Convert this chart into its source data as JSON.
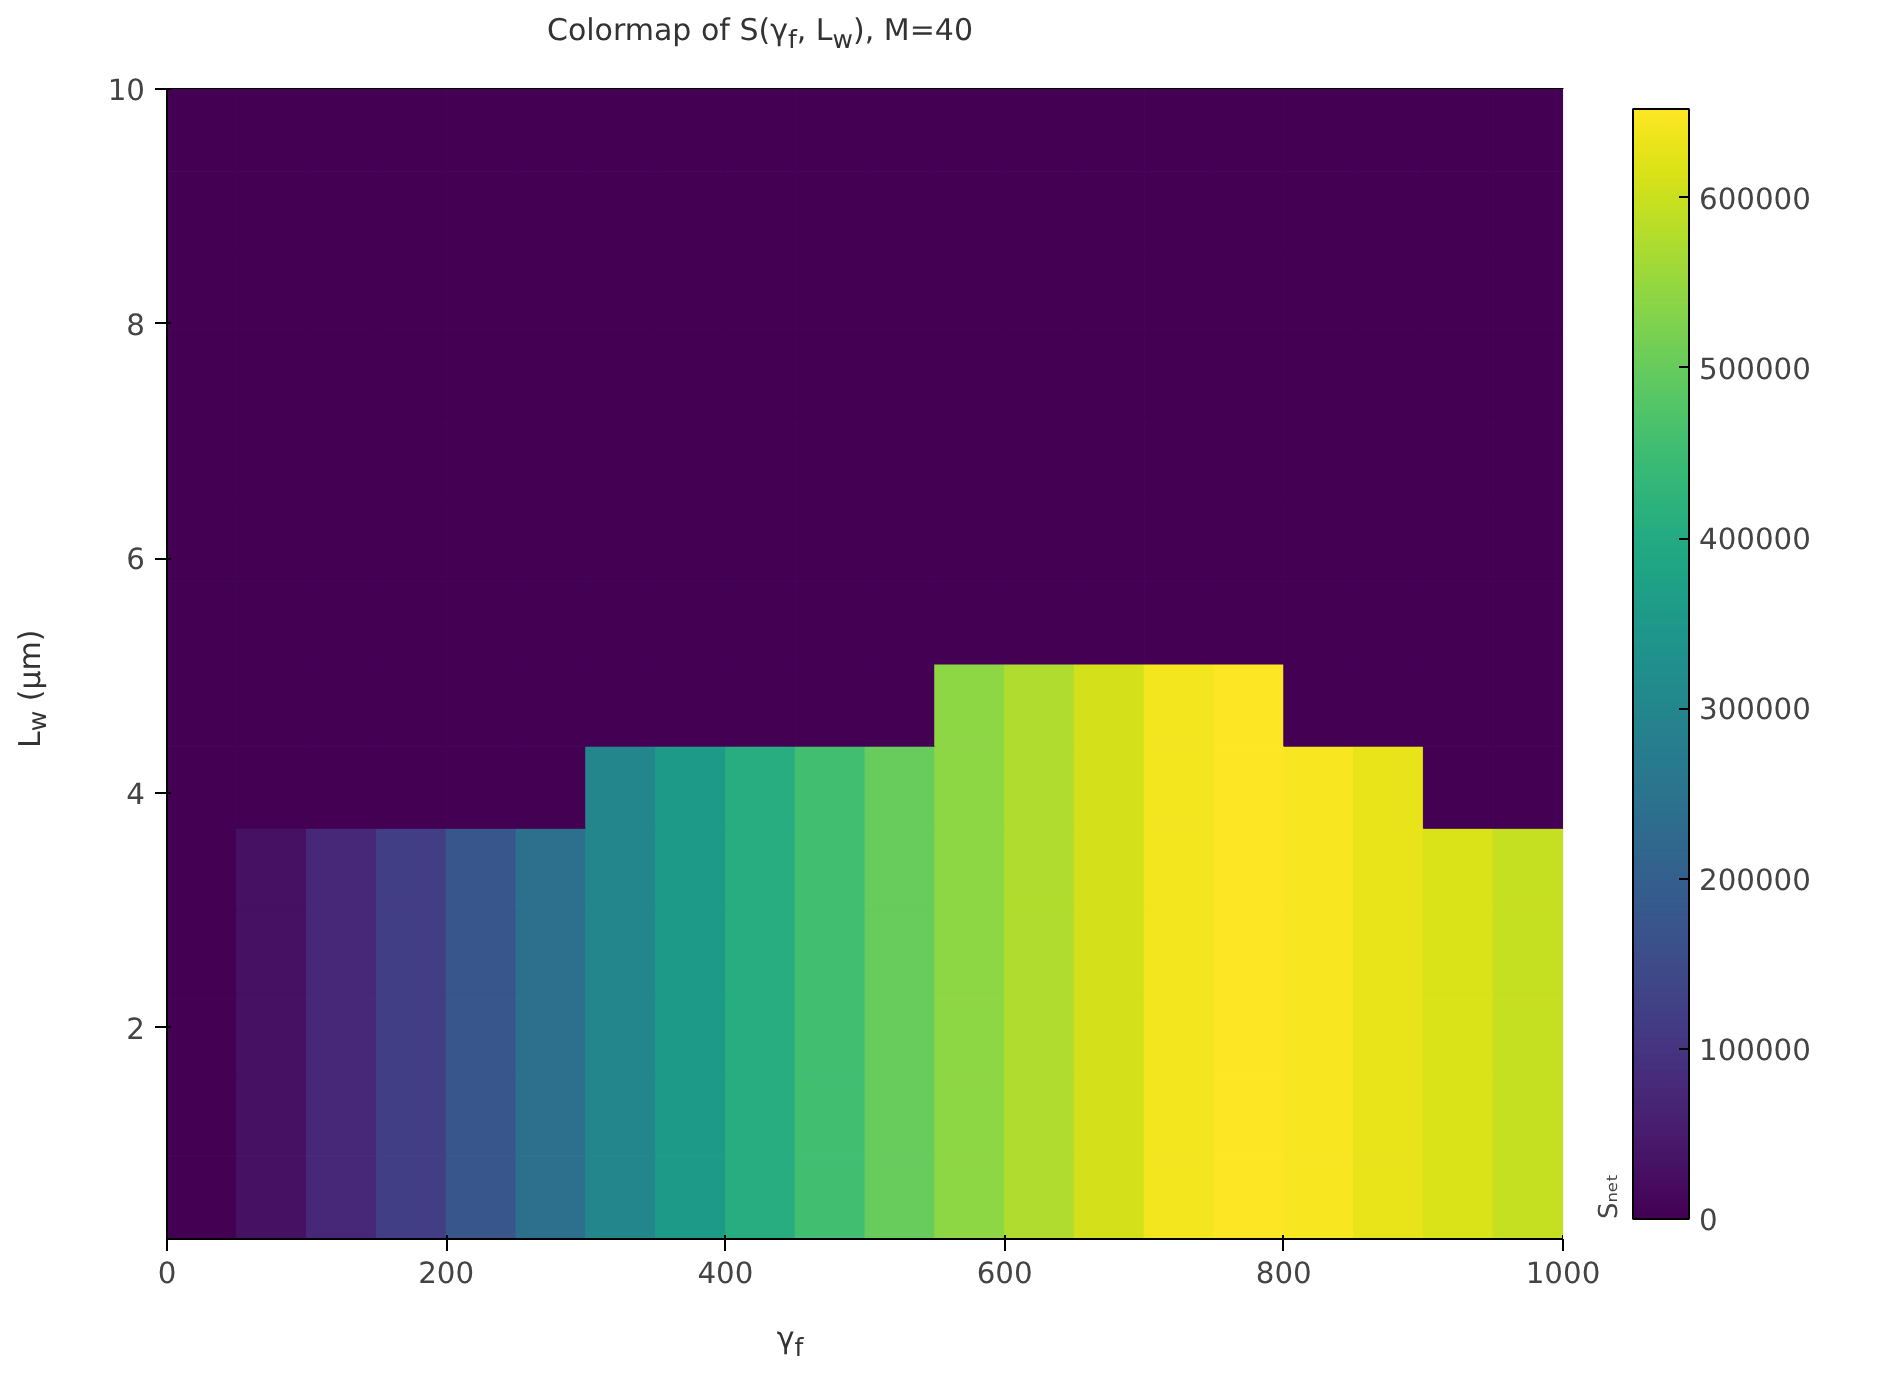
{
  "chart_data": {
    "type": "scatter",
    "marker": "square",
    "title": "Colormap of S(γ$_{f}$, L$_{w}$), M=40",
    "xlabel": "γ$_{f}$",
    "ylabel": "L$_{w}$ (μm)",
    "clabel": "Sₙₑₜ",
    "xlim": [
      0,
      1000
    ],
    "xticks": [
      0,
      200,
      400,
      600,
      800,
      1000
    ],
    "ylim": [
      0.2,
      10
    ],
    "yticks": [
      2,
      4,
      6,
      8,
      10
    ],
    "clim": [
      0,
      652000
    ],
    "cticks": [
      0,
      100000,
      200000,
      300000,
      400000,
      500000,
      600000
    ],
    "x": [
      25,
      75,
      125,
      175,
      225,
      275,
      325,
      375,
      425,
      475,
      525,
      575,
      625,
      675,
      725,
      775,
      825,
      875,
      925,
      975,
      25,
      75,
      125,
      175,
      225,
      275,
      325,
      375,
      425,
      475,
      525,
      575,
      625,
      675,
      725,
      775,
      825,
      875,
      925,
      975,
      25,
      75,
      125,
      175,
      225,
      275,
      325,
      375,
      425,
      475,
      525,
      575,
      625,
      675,
      725,
      775,
      825,
      875,
      925,
      975,
      25,
      75,
      125,
      175,
      225,
      275,
      325,
      375,
      425,
      475,
      525,
      575,
      625,
      675,
      725,
      775,
      825,
      875,
      925,
      975,
      25,
      75,
      125,
      175,
      225,
      275,
      325,
      375,
      425,
      475,
      525,
      575,
      625,
      675,
      725,
      775,
      825,
      875,
      925,
      975,
      25,
      75,
      125,
      175,
      225,
      275,
      325,
      375,
      425,
      475,
      525,
      575,
      625,
      675,
      725,
      775,
      825,
      875,
      925,
      975,
      25,
      75,
      125,
      175,
      225,
      275,
      325,
      375,
      425,
      475,
      525,
      575,
      625,
      675,
      725,
      775,
      825,
      875,
      925,
      975,
      25,
      75,
      125,
      175,
      225,
      275,
      325,
      375,
      425,
      475,
      525,
      575,
      625,
      675,
      725,
      775,
      825,
      875,
      925,
      975,
      25,
      75,
      125,
      175,
      225,
      275,
      325,
      375,
      425,
      475,
      525,
      575,
      625,
      675,
      725,
      775,
      825,
      875,
      925,
      975,
      25,
      75,
      125,
      175,
      225,
      275,
      325,
      375,
      425,
      475,
      525,
      575,
      625,
      675,
      725,
      775,
      825,
      875,
      925,
      975,
      25,
      75,
      125,
      175,
      225,
      275,
      325,
      375,
      425,
      475,
      525,
      575,
      625,
      675,
      725,
      775,
      825,
      875,
      925,
      975,
      25,
      75,
      125,
      175,
      225,
      275,
      325,
      375,
      425,
      475,
      525,
      575,
      625,
      675,
      725,
      775,
      825,
      875,
      925,
      975,
      25,
      75,
      125,
      175,
      225,
      275,
      325,
      375,
      425,
      475,
      525,
      575,
      625,
      675,
      725,
      775,
      825,
      875,
      925,
      975,
      25,
      75,
      125,
      175,
      225,
      275,
      325,
      375,
      425,
      475,
      525,
      575,
      625,
      675,
      725,
      775,
      825,
      875,
      925,
      975
    ],
    "values": [
      0.55,
      0.55,
      0.55,
      0.55,
      0.55,
      0.55,
      0.55,
      0.55,
      0.55,
      0.55,
      0.55,
      0.55,
      0.55,
      0.55,
      0.55,
      0.55,
      0.55,
      0.55,
      0.55,
      0.55,
      1.25,
      1.25,
      1.25,
      1.25,
      1.25,
      1.25,
      1.25,
      1.25,
      1.25,
      1.25,
      1.25,
      1.25,
      1.25,
      1.25,
      1.25,
      1.25,
      1.25,
      1.25,
      1.25,
      1.25,
      1.95,
      1.95,
      1.95,
      1.95,
      1.95,
      1.95,
      1.95,
      1.95,
      1.95,
      1.95,
      1.95,
      1.95,
      1.95,
      1.95,
      1.95,
      1.95,
      1.95,
      1.95,
      1.95,
      1.95,
      2.65,
      2.65,
      2.65,
      2.65,
      2.65,
      2.65,
      2.65,
      2.65,
      2.65,
      2.65,
      2.65,
      2.65,
      2.65,
      2.65,
      2.65,
      2.65,
      2.65,
      2.65,
      2.65,
      2.65,
      3.35,
      3.35,
      3.35,
      3.35,
      3.35,
      3.35,
      3.35,
      3.35,
      3.35,
      3.35,
      3.35,
      3.35,
      3.35,
      3.35,
      3.35,
      3.35,
      3.35,
      3.35,
      3.35,
      3.35,
      4.05,
      4.05,
      4.05,
      4.05,
      4.05,
      4.05,
      4.05,
      4.05,
      4.05,
      4.05,
      4.05,
      4.05,
      4.05,
      4.05,
      4.05,
      4.05,
      4.05,
      4.05,
      4.05,
      4.05,
      4.75,
      4.75,
      4.75,
      4.75,
      4.75,
      4.75,
      4.75,
      4.75,
      4.75,
      4.75,
      4.75,
      4.75,
      4.75,
      4.75,
      4.75,
      4.75,
      4.75,
      4.75,
      4.75,
      4.75,
      5.45,
      5.45,
      5.45,
      5.45,
      5.45,
      5.45,
      5.45,
      5.45,
      5.45,
      5.45,
      5.45,
      5.45,
      5.45,
      5.45,
      5.45,
      5.45,
      5.45,
      5.45,
      5.45,
      5.45,
      6.15,
      6.15,
      6.15,
      6.15,
      6.15,
      6.15,
      6.15,
      6.15,
      6.15,
      6.15,
      6.15,
      6.15,
      6.15,
      6.15,
      6.15,
      6.15,
      6.15,
      6.15,
      6.15,
      6.15,
      6.85,
      6.85,
      6.85,
      6.85,
      6.85,
      6.85,
      6.85,
      6.85,
      6.85,
      6.85,
      6.85,
      6.85,
      6.85,
      6.85,
      6.85,
      6.85,
      6.85,
      6.85,
      6.85,
      6.85,
      7.55,
      7.55,
      7.55,
      7.55,
      7.55,
      7.55,
      7.55,
      7.55,
      7.55,
      7.55,
      7.55,
      7.55,
      7.55,
      7.55,
      7.55,
      7.55,
      7.55,
      7.55,
      7.55,
      7.55,
      8.25,
      8.25,
      8.25,
      8.25,
      8.25,
      8.25,
      8.25,
      8.25,
      8.25,
      8.25,
      8.25,
      8.25,
      8.25,
      8.25,
      8.25,
      8.25,
      8.25,
      8.25,
      8.25,
      8.25,
      8.95,
      8.95,
      8.95,
      8.95,
      8.95,
      8.95,
      8.95,
      8.95,
      8.95,
      8.95,
      8.95,
      8.95,
      8.95,
      8.95,
      8.95,
      8.95,
      8.95,
      8.95,
      8.95,
      8.95,
      9.65,
      9.65,
      9.65,
      9.65,
      9.65,
      9.65,
      9.65,
      9.65,
      9.65,
      9.65,
      9.65,
      9.65,
      9.65,
      9.65,
      9.65,
      9.65,
      9.65,
      9.65,
      9.65,
      9.65
    ],
    "cvalues": [
      0,
      30000,
      75000,
      120000,
      175000,
      240000,
      300000,
      355000,
      405000,
      455000,
      500000,
      540000,
      575000,
      610000,
      640000,
      650000,
      645000,
      630000,
      615000,
      595000,
      0,
      30000,
      75000,
      120000,
      175000,
      240000,
      300000,
      355000,
      405000,
      455000,
      500000,
      540000,
      575000,
      610000,
      640000,
      650000,
      645000,
      630000,
      615000,
      595000,
      0,
      30000,
      75000,
      120000,
      175000,
      240000,
      300000,
      355000,
      405000,
      455000,
      500000,
      540000,
      575000,
      610000,
      640000,
      650000,
      645000,
      630000,
      615000,
      595000,
      0,
      30000,
      75000,
      120000,
      175000,
      240000,
      300000,
      355000,
      405000,
      455000,
      500000,
      540000,
      575000,
      610000,
      640000,
      650000,
      645000,
      630000,
      615000,
      595000,
      0,
      30000,
      75000,
      120000,
      175000,
      240000,
      300000,
      355000,
      405000,
      455000,
      500000,
      540000,
      575000,
      610000,
      640000,
      650000,
      645000,
      630000,
      615000,
      595000,
      0,
      0,
      0,
      0,
      0,
      0,
      300000,
      355000,
      405000,
      455000,
      500000,
      540000,
      575000,
      610000,
      640000,
      650000,
      645000,
      630000,
      0,
      0,
      0,
      0,
      0,
      0,
      0,
      0,
      0,
      0,
      0,
      0,
      0,
      540000,
      575000,
      610000,
      640000,
      650000,
      0,
      0,
      0,
      0,
      0,
      0,
      0,
      0,
      0,
      0,
      0,
      0,
      0,
      0,
      0,
      0,
      0,
      0,
      0,
      0,
      0,
      0,
      0,
      0,
      0,
      0,
      0,
      0,
      0,
      0,
      0,
      0,
      0,
      0,
      0,
      0,
      0,
      0,
      0,
      0,
      0,
      0,
      0,
      0,
      0,
      0,
      0,
      0,
      0,
      0,
      0,
      0,
      0,
      0,
      0,
      0,
      0,
      0,
      0,
      0,
      0,
      0,
      0,
      0,
      0,
      0,
      0,
      0,
      0,
      0,
      0,
      0,
      0,
      0,
      0,
      0,
      0,
      0,
      0,
      0,
      0,
      0,
      0,
      0,
      0,
      0,
      0,
      0,
      0,
      0,
      0,
      0,
      0,
      0,
      0,
      0,
      0,
      0,
      0,
      0,
      0,
      0,
      0,
      0,
      0,
      0,
      0,
      0,
      0,
      0,
      0,
      0,
      0,
      0,
      0,
      0,
      0,
      0,
      0,
      0,
      0,
      0,
      0,
      0,
      0,
      0,
      0,
      0,
      0,
      0,
      0,
      0,
      0,
      0,
      0,
      0,
      0,
      0,
      0,
      0,
      0,
      0,
      0,
      0
    ]
  }
}
